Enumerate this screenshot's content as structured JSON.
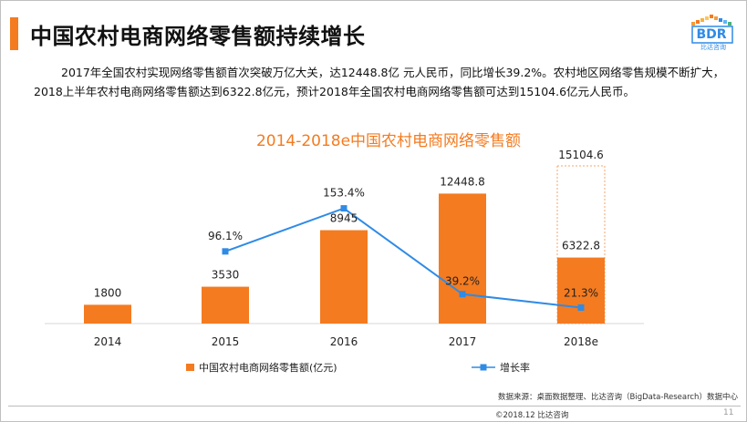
{
  "header": {
    "title": "中国农村电商网络零售额持续增长",
    "logo_text": "BDR",
    "logo_subtext": "比达咨询"
  },
  "body": {
    "paragraph": "2017年全国农村实现网络零售额首次突破万亿大关，达12448.8亿 元人民币，同比增长39.2%。农村地区网络零售规模不断扩大，2018上半年农村电商网络零售额达到6322.8亿元，预计2018年全国农村电商网络零售额可达到15104.6亿元人民币。"
  },
  "chart_data": {
    "type": "bar",
    "title": "2014-2018e中国农村电商网络零售额",
    "categories": [
      "2014",
      "2015",
      "2016",
      "2017",
      "2018e"
    ],
    "series": [
      {
        "name": "中国农村电商网络零售额(亿元)",
        "kind": "bar",
        "values": [
          1800,
          3530,
          8945,
          12448.8,
          6322.8
        ],
        "labels": [
          "1800",
          "3530",
          "8945",
          "12448.8",
          "6322.8"
        ]
      },
      {
        "name": "增长率",
        "kind": "line",
        "values": [
          null,
          96.1,
          153.4,
          39.2,
          21.3
        ],
        "labels": [
          "",
          "96.1%",
          "153.4%",
          "39.2%",
          "21.3%"
        ]
      }
    ],
    "forecast": {
      "category": "2018e",
      "value": 15104.6,
      "label": "15104.6",
      "style": "dashed outline"
    },
    "bar_ylim": [
      0,
      16500
    ],
    "line_ylim": [
      0,
      250
    ],
    "xlabel": "",
    "ylabel": "",
    "grid": false,
    "legend_position": "bottom"
  },
  "footer": {
    "source": "数据来源：桌面数据整理、比达咨询（BigData-Research）数据中心",
    "copyright": "©2018.12 比达咨询",
    "page_number": "11"
  },
  "colors": {
    "accent": "#f47b20",
    "bar": "#f47b20",
    "line": "#2f8be6",
    "dashed_outline": "#f4a46a"
  }
}
